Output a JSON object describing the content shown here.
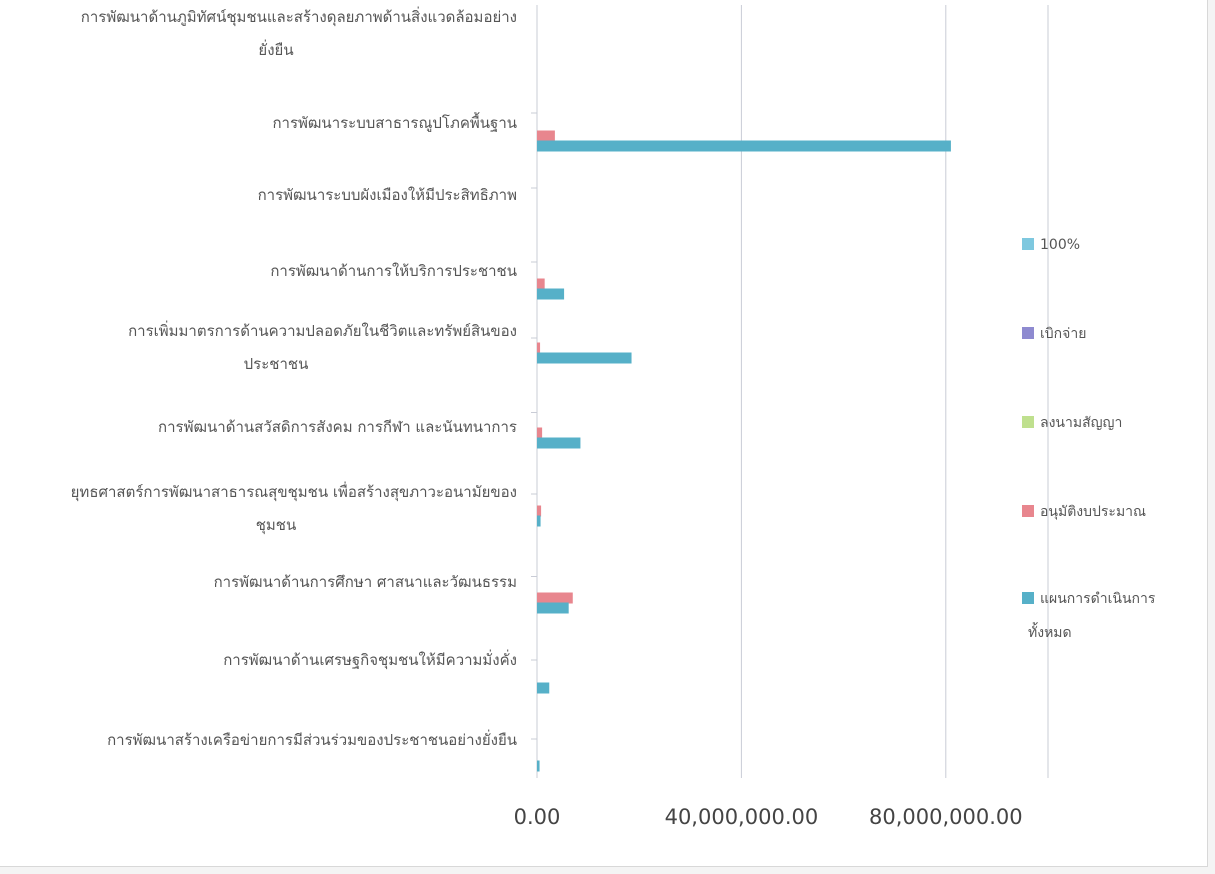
{
  "chart_data": {
    "type": "bar",
    "orientation": "horizontal",
    "title": "",
    "xlabel": "",
    "ylabel": "",
    "xlim": [
      0,
      100000000
    ],
    "x_ticks": [
      "0.00",
      "40,000,000.00",
      "80,000,000.00"
    ],
    "x_tick_values": [
      0,
      40000000,
      80000000
    ],
    "grid": true,
    "legend_position": "right",
    "categories": [
      [
        "การพัฒนาด้านภูมิทัศน์ชุมชนและสร้างดุลยภาพด้านสิ่งแวดล้อมอย่าง",
        "ยั่งยืน"
      ],
      [
        "การพัฒนาระบบสาธารณูปโภคพื้นฐาน"
      ],
      [
        "การพัฒนาระบบผังเมืองให้มีประสิทธิภาพ"
      ],
      [
        "การพัฒนาด้านการให้บริการประชาชน"
      ],
      [
        "การเพิ่มมาตรการด้านความปลอดภัยในชีวิตและทรัพย์สินของ",
        "ประชาชน"
      ],
      [
        "การพัฒนาด้านสวัสดิการสังคม การกีฬา และนันทนาการ"
      ],
      [
        "ยุทธศาสตร์การพัฒนาสาธารณสุขชุมชน เพื่อสร้างสุขภาวะอนามัยของ",
        "ชุมชน"
      ],
      [
        "การพัฒนาด้านการศึกษา ศาสนาและวัฒนธรรม"
      ],
      [
        "การพัฒนาด้านเศรษฐกิจชุมชนให้มีความมั่งคั่ง"
      ],
      [
        "การพัฒนาสร้างเครือข่ายการมีส่วนร่วมของประชาชนอย่างยั่งยืน"
      ]
    ],
    "series": [
      {
        "name": "100%",
        "color": "#7ec8df",
        "values": [
          0,
          0,
          0,
          0,
          0,
          0,
          0,
          0,
          0,
          0
        ]
      },
      {
        "name": "เบิกจ่าย",
        "color": "#8e8ad0",
        "values": [
          0,
          0,
          0,
          0,
          0,
          0,
          0,
          0,
          0,
          0
        ]
      },
      {
        "name": "ลงนามสัญญา",
        "color": "#bfe08e",
        "values": [
          0,
          0,
          0,
          0,
          0,
          0,
          0,
          0,
          0,
          0
        ]
      },
      {
        "name": "อนุมัติงบประมาณ",
        "color": "#e8868e",
        "values": [
          0,
          3500000,
          0,
          1500000,
          600000,
          1000000,
          800000,
          7000000,
          0,
          0
        ]
      },
      {
        "name": "แผนการดำเนินการทั้งหมด",
        "color": "#56b0c8",
        "values": [
          0,
          81000000,
          0,
          5300000,
          18500000,
          8500000,
          700000,
          6200000,
          2400000,
          500000
        ]
      }
    ]
  },
  "legend": {
    "items": [
      {
        "lines": [
          "100%"
        ],
        "color": "#7ec8df"
      },
      {
        "lines": [
          "เบิกจ่าย"
        ],
        "color": "#8e8ad0"
      },
      {
        "lines": [
          "ลงนามสัญญา"
        ],
        "color": "#bfe08e"
      },
      {
        "lines": [
          "อนุมัติงบประมาณ"
        ],
        "color": "#e8868e"
      },
      {
        "lines": [
          "แผนการดำเนินการ",
          "ทั้งหมด"
        ],
        "color": "#56b0c8"
      }
    ]
  }
}
